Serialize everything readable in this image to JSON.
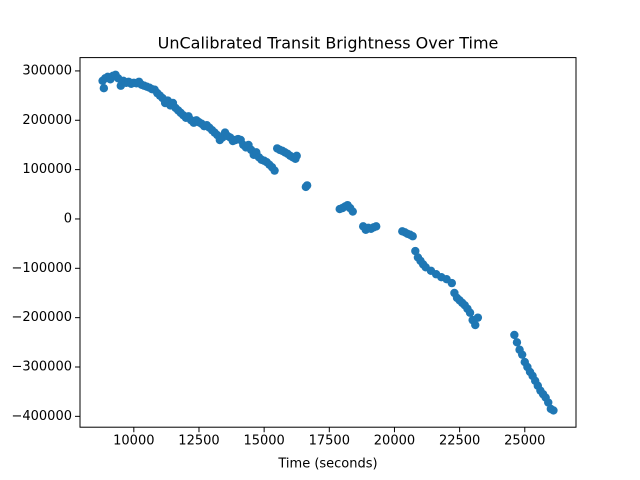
{
  "chart_data": {
    "type": "scatter",
    "title": "UnCalibrated Transit Brightness Over Time",
    "x_label": "Time (seconds)",
    "color": "#1f77b4",
    "xlim": [
      7935,
      26965
    ],
    "ylim": [
      -422000,
      327000
    ],
    "xticks": [
      10000,
      12500,
      15000,
      17500,
      20000,
      22500,
      25000
    ],
    "yticks": [
      {
        "value": -400000,
        "label": "−400000"
      },
      {
        "value": -300000,
        "label": "−300000"
      },
      {
        "value": -200000,
        "label": "−200000"
      },
      {
        "value": -100000,
        "label": "−100000"
      },
      0,
      100000,
      200000,
      300000
    ],
    "x": [
      8800,
      8850,
      8900,
      9000,
      9100,
      9200,
      9300,
      9400,
      9500,
      9600,
      9700,
      9800,
      9900,
      10000,
      10100,
      10200,
      10300,
      10400,
      10500,
      10600,
      10700,
      10800,
      10900,
      11000,
      11100,
      11200,
      11300,
      11400,
      11500,
      11600,
      11700,
      11800,
      11900,
      12000,
      12100,
      12200,
      12300,
      12400,
      12500,
      12600,
      12700,
      12800,
      12900,
      13000,
      13100,
      13200,
      13300,
      13400,
      13500,
      13600,
      13700,
      13800,
      13900,
      14000,
      14100,
      14200,
      14300,
      14400,
      14500,
      14600,
      14700,
      14800,
      14900,
      15000,
      15100,
      15200,
      15300,
      15400,
      15500,
      15600,
      15700,
      15800,
      15900,
      16000,
      16100,
      16200,
      16250,
      16600,
      16650,
      17900,
      18000,
      18100,
      18200,
      18300,
      18400,
      18800,
      18900,
      19000,
      19100,
      19200,
      19300,
      20300,
      20400,
      20500,
      20600,
      20700,
      20800,
      20900,
      21000,
      21100,
      21200,
      21400,
      21600,
      21800,
      22000,
      22200,
      22300,
      22400,
      22500,
      22600,
      22700,
      22800,
      22900,
      23000,
      23100,
      23200,
      24600,
      24700,
      24800,
      24900,
      25000,
      25100,
      25200,
      25300,
      25400,
      25500,
      25600,
      25700,
      25800,
      25900,
      26000,
      26100
    ],
    "values": [
      280000,
      265000,
      285000,
      288000,
      283000,
      290000,
      292000,
      285000,
      270000,
      280000,
      276000,
      278000,
      274000,
      276000,
      275000,
      278000,
      272000,
      270000,
      268000,
      266000,
      263000,
      262000,
      255000,
      250000,
      245000,
      235000,
      240000,
      230000,
      235000,
      225000,
      220000,
      215000,
      210000,
      205000,
      208000,
      200000,
      195000,
      200000,
      196000,
      193000,
      188000,
      190000,
      185000,
      180000,
      175000,
      170000,
      160000,
      165000,
      175000,
      168000,
      165000,
      158000,
      160000,
      162000,
      160000,
      150000,
      145000,
      150000,
      140000,
      130000,
      135000,
      125000,
      120000,
      118000,
      115000,
      110000,
      105000,
      98000,
      143000,
      140000,
      138000,
      135000,
      132000,
      128000,
      125000,
      122000,
      128000,
      65000,
      68000,
      20000,
      22000,
      25000,
      28000,
      22000,
      15000,
      -15000,
      -22000,
      -18000,
      -20000,
      -17000,
      -15000,
      -25000,
      -27000,
      -30000,
      -32000,
      -35000,
      -65000,
      -78000,
      -85000,
      -92000,
      -98000,
      -105000,
      -112000,
      -118000,
      -122000,
      -130000,
      -150000,
      -160000,
      -165000,
      -170000,
      -175000,
      -182000,
      -190000,
      -205000,
      -215000,
      -200000,
      -235000,
      -250000,
      -265000,
      -275000,
      -290000,
      -300000,
      -310000,
      -318000,
      -328000,
      -338000,
      -348000,
      -355000,
      -362000,
      -372000,
      -385000,
      -388000
    ]
  }
}
